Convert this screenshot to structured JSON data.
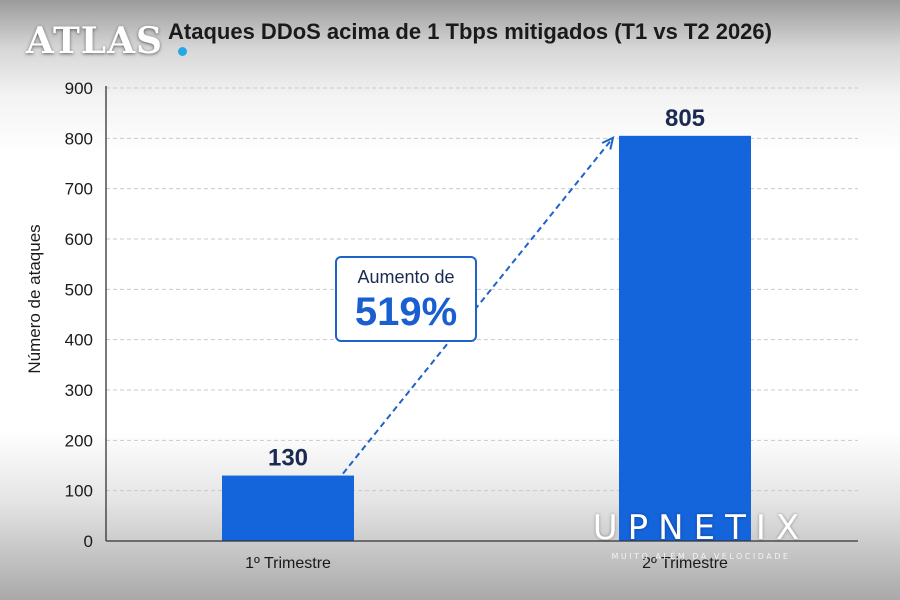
{
  "chart_data": {
    "type": "bar",
    "title": "Ataques DDoS acima de 1 Tbps mitigados (T1 vs T2 2026)",
    "ylabel": "Número de ataques",
    "xlabel": "",
    "categories": [
      "1º Trimestre",
      "2º Trimestre"
    ],
    "values": [
      130,
      805
    ],
    "data_labels": [
      "130",
      "805"
    ],
    "ylim": [
      0,
      900
    ],
    "yticks": [
      "0",
      "100",
      "200",
      "300",
      "400",
      "500",
      "600",
      "700",
      "800",
      "900"
    ],
    "grid": true,
    "bar_color": "#1464dc",
    "annotation": {
      "line1": "Aumento de",
      "line2": "519%",
      "color": "#1a5fd0"
    }
  },
  "watermarks": {
    "top_left": "ATLAS",
    "bottom_right": "UPNETIX",
    "bottom_right_tagline": "MUITO ALÉM DA VELOCIDADE"
  }
}
